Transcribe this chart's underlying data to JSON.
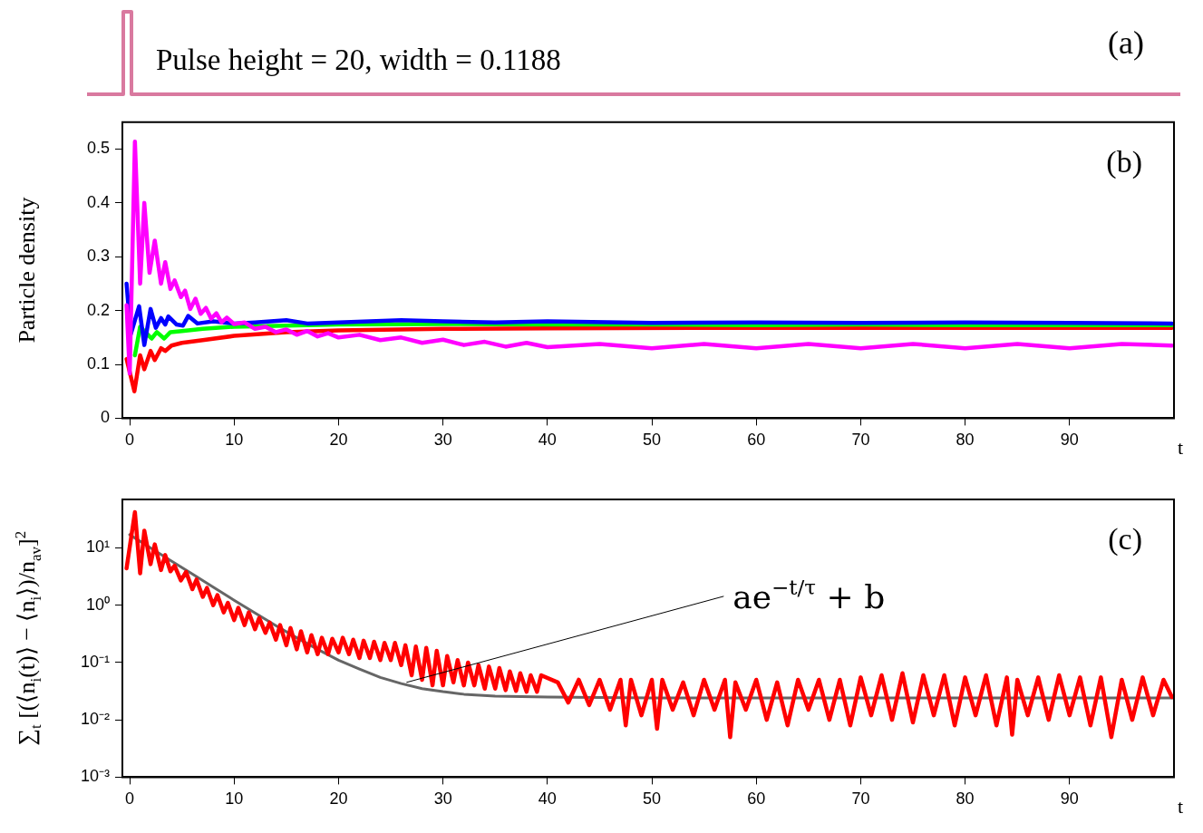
{
  "chart_data": [
    {
      "type": "other",
      "color": "#d9799f",
      "annotations": [
        "Pulse height = 20, width = 0.1188",
        "(a)"
      ]
    },
    {
      "type": "line",
      "ylabel": "Particle density",
      "xlabel": "t",
      "xlim": [
        -0.7,
        100
      ],
      "xticks": [
        0,
        10,
        20,
        30,
        40,
        50,
        60,
        70,
        80,
        90
      ],
      "ylim": [
        0,
        0.55
      ],
      "yticks": [
        0,
        0.1,
        0.2,
        0.3,
        0.4,
        0.5
      ],
      "annotations": [
        "(b)"
      ],
      "series": [
        {
          "color": "#ff00ff",
          "x": [
            -0.3,
            0,
            0.5,
            1.0,
            1.4,
            1.9,
            2.4,
            3.0,
            3.4,
            3.9,
            4.3,
            4.9,
            5.3,
            5.8,
            6.3,
            6.8,
            7.3,
            7.8,
            8.3,
            8.8,
            9.3,
            10,
            11,
            12,
            13,
            14,
            15,
            16,
            17,
            18,
            19,
            20,
            22,
            24,
            26,
            28,
            30,
            32,
            34,
            36,
            38,
            40,
            45,
            50,
            55,
            60,
            65,
            70,
            75,
            80,
            85,
            90,
            95,
            99.8
          ],
          "values": [
            0.21,
            0.083,
            0.514,
            0.25,
            0.4,
            0.27,
            0.33,
            0.25,
            0.29,
            0.24,
            0.256,
            0.225,
            0.237,
            0.203,
            0.222,
            0.194,
            0.205,
            0.185,
            0.195,
            0.178,
            0.187,
            0.175,
            0.178,
            0.166,
            0.17,
            0.16,
            0.165,
            0.155,
            0.162,
            0.152,
            0.158,
            0.15,
            0.155,
            0.145,
            0.15,
            0.14,
            0.146,
            0.136,
            0.142,
            0.133,
            0.14,
            0.132,
            0.138,
            0.13,
            0.138,
            0.13,
            0.138,
            0.13,
            0.138,
            0.13,
            0.138,
            0.13,
            0.138,
            0.135
          ]
        },
        {
          "color": "#0000ff",
          "x": [
            -0.3,
            0.1,
            0.9,
            1.4,
            2.0,
            2.5,
            3.0,
            3.4,
            3.7,
            4.5,
            5.1,
            5.6,
            6.5,
            8,
            10,
            12,
            15,
            17,
            20,
            26,
            30,
            35,
            40,
            50,
            60,
            70,
            80,
            90,
            99.8
          ],
          "values": [
            0.25,
            0.156,
            0.208,
            0.136,
            0.203,
            0.168,
            0.186,
            0.174,
            0.189,
            0.174,
            0.172,
            0.19,
            0.176,
            0.18,
            0.176,
            0.178,
            0.182,
            0.176,
            0.178,
            0.182,
            0.18,
            0.178,
            0.18,
            0.177,
            0.178,
            0.177,
            0.178,
            0.177,
            0.176
          ]
        },
        {
          "color": "#00ff00",
          "x": [
            0.5,
            1.0,
            1.5,
            2.1,
            2.6,
            3.3,
            3.9,
            5,
            7,
            10,
            15,
            20,
            30,
            40,
            50,
            60,
            70,
            80,
            90,
            99.8
          ],
          "values": [
            0.117,
            0.17,
            0.16,
            0.148,
            0.16,
            0.148,
            0.16,
            0.162,
            0.166,
            0.17,
            0.172,
            0.174,
            0.175,
            0.174,
            0.174,
            0.173,
            0.174,
            0.173,
            0.173,
            0.173
          ]
        },
        {
          "color": "#ff0000",
          "x": [
            -0.3,
            0.45,
            1.0,
            1.4,
            2.0,
            2.4,
            3.0,
            3.4,
            4.0,
            5,
            7,
            10,
            15,
            20,
            30,
            40,
            60,
            80,
            99.8
          ],
          "values": [
            0.11,
            0.05,
            0.117,
            0.091,
            0.125,
            0.108,
            0.13,
            0.125,
            0.135,
            0.14,
            0.145,
            0.153,
            0.16,
            0.163,
            0.166,
            0.167,
            0.168,
            0.168,
            0.168
          ]
        }
      ]
    },
    {
      "type": "line",
      "log": "y",
      "ylabel": "∑$_{t}$ [(⟨n$_{i}$(t)⟩ − ⟨n$_{i}$⟩)/n$_{av}$]$^{2}$",
      "xlabel": "t",
      "xlim": [
        -0.7,
        100
      ],
      "xticks": [
        0,
        10,
        20,
        30,
        40,
        50,
        60,
        70,
        80,
        90
      ],
      "ylim": [
        0.001,
        70
      ],
      "yticks": [
        {
          "value": 0.001,
          "label": "10⁻³"
        },
        {
          "value": 0.01,
          "label": "10⁻²"
        },
        {
          "value": 0.1,
          "label": "10⁻¹"
        },
        {
          "value": 1,
          "label": "10⁰"
        },
        {
          "value": 10,
          "label": "10¹"
        }
      ],
      "annotations": [
        "(c)",
        {
          "text": "ae$^{−t/τ}$ + b",
          "x": 26.5,
          "y": 0.045
        }
      ],
      "series": [
        {
          "color": "#ff0000",
          "x": [
            -0.3,
            0.5,
            1.0,
            1.4,
            2.0,
            2.4,
            3.0,
            3.4,
            3.9,
            4.3,
            4.9,
            5.4,
            6.0,
            6.4,
            7.0,
            7.4,
            8.0,
            8.4,
            9.0,
            9.4,
            10.0,
            10.4,
            11.0,
            11.4,
            12.0,
            12.4,
            13.0,
            13.4,
            14.0,
            14.4,
            15.0,
            15.4,
            16.0,
            16.4,
            17.0,
            17.4,
            18.0,
            18.4,
            19.0,
            19.4,
            20.0,
            20.4,
            21.0,
            21.4,
            22.0,
            22.4,
            23.0,
            23.4,
            24.0,
            24.4,
            25.0,
            25.4,
            26.0,
            26.4,
            27.0,
            27.4,
            28.0,
            28.4,
            29.0,
            29.4,
            30.0,
            30.4,
            31.0,
            31.4,
            32.0,
            32.4,
            33.0,
            33.4,
            34.0,
            34.4,
            35.0,
            35.4,
            36.0,
            36.4,
            37.0,
            37.4,
            38.0,
            38.4,
            39.0,
            39.4,
            41,
            42,
            43,
            44,
            45,
            46,
            47,
            47.5,
            48,
            49,
            50,
            50.5,
            51,
            52,
            53,
            54,
            55,
            56,
            57,
            57.5,
            58,
            59,
            60,
            61,
            62,
            63,
            64,
            65,
            66,
            67,
            68,
            69,
            70,
            71,
            72,
            73,
            74,
            75,
            76,
            77,
            78,
            79,
            80,
            81,
            82,
            83,
            84,
            84.5,
            85,
            86,
            87,
            88,
            89,
            90,
            91,
            92,
            93,
            94,
            95,
            96,
            97,
            98,
            99,
            99.8
          ],
          "values": [
            4.4,
            42,
            3.6,
            20,
            5.2,
            11.5,
            4.1,
            7.5,
            3.9,
            4.9,
            2.7,
            3.8,
            1.9,
            2.8,
            1.4,
            2.0,
            1.0,
            1.5,
            0.75,
            1.1,
            0.55,
            0.9,
            0.45,
            0.75,
            0.38,
            0.6,
            0.33,
            0.5,
            0.25,
            0.45,
            0.2,
            0.4,
            0.17,
            0.35,
            0.15,
            0.3,
            0.14,
            0.27,
            0.14,
            0.26,
            0.15,
            0.27,
            0.14,
            0.25,
            0.12,
            0.24,
            0.12,
            0.23,
            0.11,
            0.22,
            0.11,
            0.22,
            0.09,
            0.2,
            0.06,
            0.19,
            0.05,
            0.18,
            0.04,
            0.16,
            0.04,
            0.13,
            0.045,
            0.11,
            0.04,
            0.1,
            0.04,
            0.09,
            0.035,
            0.085,
            0.035,
            0.08,
            0.033,
            0.07,
            0.032,
            0.065,
            0.031,
            0.06,
            0.031,
            0.06,
            0.045,
            0.02,
            0.05,
            0.018,
            0.05,
            0.015,
            0.05,
            0.008,
            0.05,
            0.012,
            0.05,
            0.007,
            0.05,
            0.015,
            0.045,
            0.012,
            0.05,
            0.015,
            0.05,
            0.005,
            0.045,
            0.015,
            0.05,
            0.01,
            0.045,
            0.008,
            0.05,
            0.015,
            0.05,
            0.01,
            0.05,
            0.008,
            0.055,
            0.012,
            0.06,
            0.01,
            0.065,
            0.009,
            0.06,
            0.012,
            0.06,
            0.008,
            0.055,
            0.012,
            0.06,
            0.008,
            0.055,
            0.0055,
            0.05,
            0.012,
            0.055,
            0.01,
            0.06,
            0.012,
            0.055,
            0.008,
            0.055,
            0.005,
            0.05,
            0.01,
            0.055,
            0.012,
            0.05,
            0.025
          ]
        },
        {
          "type": "line",
          "color": "#666666",
          "x": [
            0,
            2,
            4,
            6,
            8,
            10,
            12,
            14,
            16,
            18,
            20,
            22,
            24,
            26,
            28,
            30,
            32,
            35,
            40,
            50,
            100
          ],
          "values": [
            17,
            10,
            5.9,
            3.5,
            2.07,
            1.22,
            0.73,
            0.44,
            0.27,
            0.17,
            0.11,
            0.077,
            0.055,
            0.043,
            0.035,
            0.031,
            0.028,
            0.026,
            0.025,
            0.024,
            0.024
          ]
        }
      ]
    }
  ]
}
